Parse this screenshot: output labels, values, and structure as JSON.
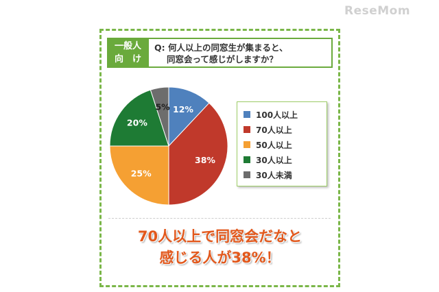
{
  "watermark": "ReseMom",
  "badge": {
    "line1": "一般人",
    "line2": "向　け"
  },
  "question": {
    "line1": "Q: 何人以上の同窓生が集まると、",
    "line2": "同窓会って感じがしますか？"
  },
  "chart_data": {
    "type": "pie",
    "title": "",
    "categories": [
      "100人以上",
      "70人以上",
      "50人以上",
      "30人以上",
      "30人未満"
    ],
    "values": [
      12,
      38,
      25,
      20,
      5
    ],
    "labels": [
      "12%",
      "38%",
      "25%",
      "20%",
      "5%"
    ],
    "colors": [
      "#4f81bd",
      "#c0392b",
      "#f5a033",
      "#1e7b34",
      "#6d6d6d"
    ],
    "label_colors": [
      "#ffffff",
      "#ffffff",
      "#ffffff",
      "#ffffff",
      "#222222"
    ],
    "start": "12 o'clock",
    "direction": "clockwise",
    "legend_position": "right"
  },
  "conclusion": {
    "line1": "70人以上で同窓会だなと",
    "line2": "感じる人が38%！"
  }
}
